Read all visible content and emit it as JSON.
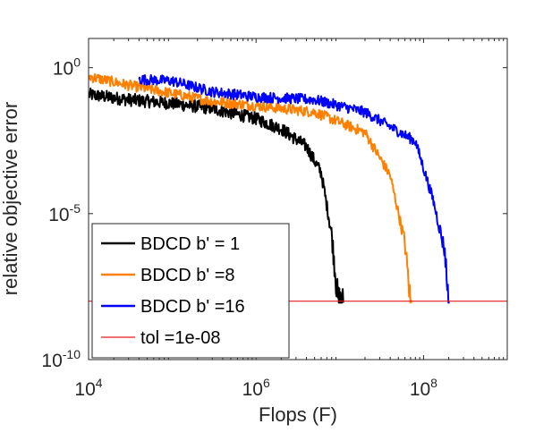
{
  "chart_data": {
    "type": "line",
    "title": "",
    "xlabel": "Flops (F)",
    "ylabel": "relative objective error",
    "xscale": "log",
    "yscale": "log",
    "xlim": [
      10000,
      1000000000
    ],
    "ylim": [
      1e-10,
      10
    ],
    "xticks": [
      {
        "base": "10",
        "exp": "4",
        "value": 10000
      },
      {
        "base": "10",
        "exp": "6",
        "value": 1000000
      },
      {
        "base": "10",
        "exp": "8",
        "value": 100000000
      }
    ],
    "yticks": [
      {
        "base": "10",
        "exp": "0",
        "value": 1
      },
      {
        "base": "10",
        "exp": "-5",
        "value": 1e-05
      },
      {
        "base": "10",
        "exp": "-10",
        "value": 1e-10
      }
    ],
    "grid": false,
    "legend_position": "bottom-left",
    "series": [
      {
        "name": "BDCD b' = 1",
        "color": "#000000",
        "noise": 0.22,
        "points": [
          [
            10000,
            0.12
          ],
          [
            30000,
            0.08
          ],
          [
            100000,
            0.06
          ],
          [
            300000,
            0.04
          ],
          [
            1000000,
            0.018
          ],
          [
            2000000,
            0.008
          ],
          [
            4000000,
            0.002
          ],
          [
            6000000,
            0.00025
          ],
          [
            8000000,
            2e-06
          ],
          [
            9500000,
            1e-08
          ],
          [
            11000000,
            8e-09
          ]
        ]
      },
      {
        "name": "BDCD b' =8",
        "color": "#ff8000",
        "noise": 0.18,
        "points": [
          [
            10000,
            0.5
          ],
          [
            30000,
            0.25
          ],
          [
            100000,
            0.13
          ],
          [
            300000,
            0.07
          ],
          [
            1000000,
            0.05
          ],
          [
            5000000,
            0.03
          ],
          [
            20000000,
            0.006
          ],
          [
            40000000,
            0.0002
          ],
          [
            60000000,
            1e-06
          ],
          [
            70000000,
            8e-09
          ],
          [
            72000000,
            8e-09
          ]
        ]
      },
      {
        "name": "BDCD b' =16",
        "color": "#0000ff",
        "noise": 0.18,
        "points": [
          [
            40000,
            0.4
          ],
          [
            100000,
            0.35
          ],
          [
            300000,
            0.15
          ],
          [
            1000000,
            0.1
          ],
          [
            5000000,
            0.08
          ],
          [
            20000000,
            0.03
          ],
          [
            80000000,
            0.003
          ],
          [
            130000000,
            3e-05
          ],
          [
            180000000,
            5e-07
          ],
          [
            200000000,
            8e-09
          ],
          [
            205000000,
            8e-09
          ]
        ]
      },
      {
        "name": "tol =1e-08",
        "color": "#e31a1c",
        "noise": 0,
        "points": [
          [
            10000,
            1e-08
          ],
          [
            1000000000,
            1e-08
          ]
        ]
      }
    ]
  }
}
